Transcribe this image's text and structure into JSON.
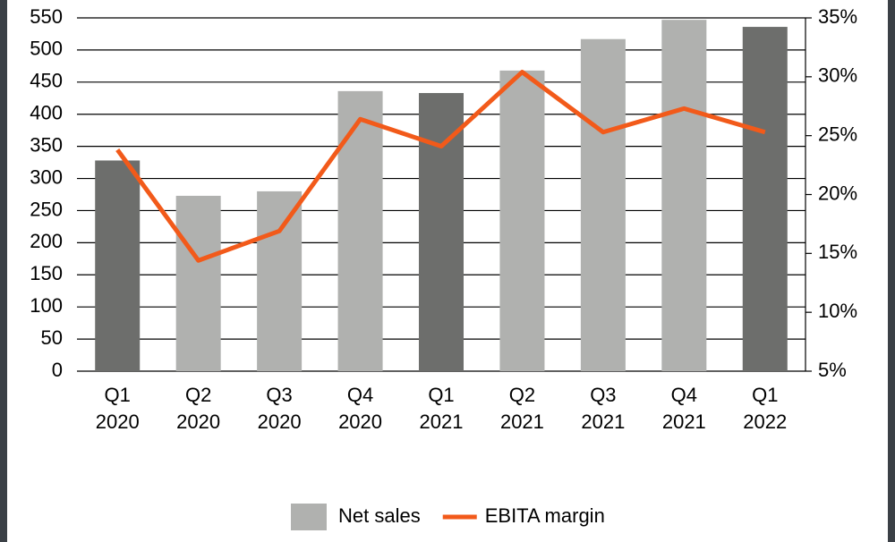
{
  "chart_data": {
    "type": "bar-line",
    "categories": [
      "Q1 2020",
      "Q2 2020",
      "Q3 2020",
      "Q4 2020",
      "Q1 2021",
      "Q2 2021",
      "Q3 2021",
      "Q4 2021",
      "Q1 2022"
    ],
    "series": [
      {
        "name": "Net sales",
        "type": "bar",
        "color": "#b0b1af",
        "colors": [
          "#6d6e6c",
          "#b0b1af",
          "#b0b1af",
          "#b0b1af",
          "#6d6e6c",
          "#b0b1af",
          "#b0b1af",
          "#b0b1af",
          "#6d6e6c"
        ],
        "values": [
          328,
          273,
          280,
          436,
          433,
          468,
          517,
          547,
          536
        ]
      },
      {
        "name": "EBITA margin",
        "type": "line",
        "axis": "y2",
        "color": "#f25a1a",
        "values": [
          23.8,
          14.4,
          16.9,
          26.4,
          24.1,
          30.4,
          25.3,
          27.3,
          25.3
        ]
      }
    ],
    "ylim": [
      0,
      550
    ],
    "yticks": [
      0,
      50,
      100,
      150,
      200,
      250,
      300,
      350,
      400,
      450,
      500,
      550
    ],
    "y2lim": [
      5,
      35
    ],
    "y2ticks": [
      {
        "value": 5,
        "label": "5%"
      },
      {
        "value": 10,
        "label": "10%"
      },
      {
        "value": 15,
        "label": "15%"
      },
      {
        "value": 20,
        "label": "20%"
      },
      {
        "value": 25,
        "label": "25%"
      },
      {
        "value": 30,
        "label": "30%"
      },
      {
        "value": 35,
        "label": "35%"
      }
    ],
    "grid": true,
    "legend": "bottom"
  }
}
